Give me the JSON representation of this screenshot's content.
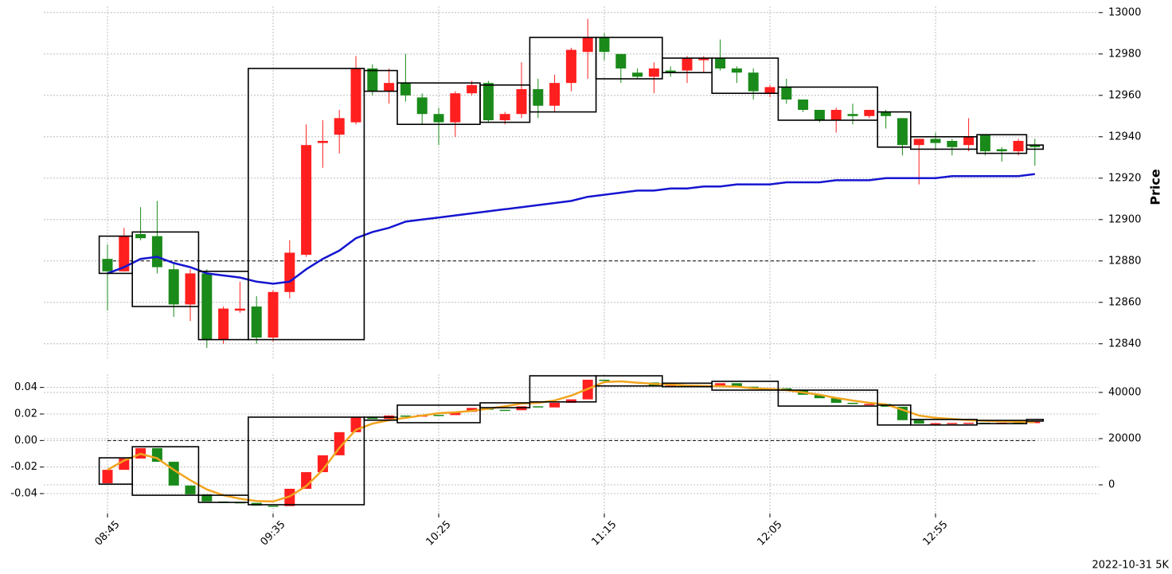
{
  "chart_data": [
    {
      "type": "candlestick",
      "ylabel": "Price",
      "ylim": [
        12833,
        13003
      ],
      "yticks": [
        12840,
        12860,
        12880,
        12900,
        12920,
        12940,
        12960,
        12980,
        13000
      ],
      "grid": true,
      "up_color": "#ff1f1f",
      "down_color": "#1a8a1a",
      "hline": 12880,
      "open": [
        12881,
        12875,
        12893,
        12892,
        12876,
        12859,
        12874,
        12842,
        12856,
        12858,
        12843,
        12865,
        12883,
        12937,
        12941,
        12947,
        12973,
        12962,
        12966,
        12959,
        12951,
        12947,
        12961,
        12966,
        12948,
        12951,
        12963,
        12955,
        12966,
        12981,
        12988,
        12980,
        12971,
        12969,
        12972,
        12972,
        12977,
        12978,
        12973,
        12971,
        12961,
        12964,
        12958,
        12953,
        12948,
        12951,
        12950,
        12952,
        12949,
        12936,
        12939,
        12938,
        12936,
        12941,
        12934,
        12933,
        12936
      ],
      "high": [
        12888,
        12896,
        12906,
        12909,
        12879,
        12876,
        12876,
        12858,
        12870,
        12863,
        12866,
        12890,
        12946,
        12948,
        12953,
        12979,
        12975,
        12973,
        12980,
        12961,
        12954,
        12962,
        12967,
        12967,
        12952,
        12976,
        12968,
        12970,
        12983,
        12997,
        12990,
        12980,
        12973,
        12976,
        12974,
        12979,
        12979,
        12987,
        12974,
        12973,
        12965,
        12968,
        12958,
        12953,
        12954,
        12956,
        12953,
        12953,
        12949,
        12939,
        12942,
        12939,
        12949,
        12941,
        12935,
        12939,
        12939
      ],
      "low": [
        12856,
        12875,
        12890,
        12874,
        12853,
        12851,
        12838,
        12840,
        12855,
        12840,
        12841,
        12862,
        12882,
        12925,
        12932,
        12946,
        12960,
        12956,
        12957,
        12946,
        12936,
        12940,
        12960,
        12947,
        12946,
        12949,
        12949,
        12952,
        12962,
        12968,
        12977,
        12966,
        12968,
        12961,
        12969,
        12966,
        12971,
        12972,
        12966,
        12958,
        12959,
        12956,
        12952,
        12947,
        12942,
        12946,
        12949,
        12944,
        12931,
        12917,
        12934,
        12931,
        12933,
        12931,
        12928,
        12931,
        12926
      ],
      "close": [
        12875,
        12892,
        12891,
        12877,
        12859,
        12874,
        12842,
        12857,
        12857,
        12843,
        12865,
        12884,
        12936,
        12938,
        12949,
        12973,
        12962,
        12966,
        12960,
        12951,
        12947,
        12961,
        12965,
        12948,
        12951,
        12963,
        12955,
        12966,
        12982,
        12988,
        12981,
        12973,
        12969,
        12973,
        12971,
        12978,
        12978,
        12973,
        12971,
        12962,
        12964,
        12958,
        12953,
        12948,
        12953,
        12950,
        12953,
        12950,
        12936,
        12939,
        12937,
        12935,
        12940,
        12933,
        12933,
        12938,
        12935
      ],
      "line": {
        "color": "#1515d0",
        "values": [
          12874,
          12877,
          12881,
          12882,
          12879,
          12877,
          12874,
          12873,
          12872,
          12870,
          12869,
          12870,
          12876,
          12881,
          12885,
          12891,
          12894,
          12896,
          12899,
          12900,
          12901,
          12902,
          12903,
          12904,
          12905,
          12906,
          12907,
          12908,
          12909,
          12911,
          12912,
          12913,
          12914,
          12914,
          12915,
          12915,
          12916,
          12916,
          12917,
          12917,
          12917,
          12918,
          12918,
          12918,
          12919,
          12919,
          12919,
          12920,
          12920,
          12920,
          12920,
          12921,
          12921,
          12921,
          12921,
          12921,
          12922
        ]
      },
      "boxes": [
        {
          "start": 0,
          "end": 1,
          "low": 12874,
          "high": 12892
        },
        {
          "start": 2,
          "end": 5,
          "low": 12858,
          "high": 12894
        },
        {
          "start": 6,
          "end": 8,
          "low": 12842,
          "high": 12875
        },
        {
          "start": 9,
          "end": 15,
          "low": 12842,
          "high": 12973
        },
        {
          "start": 16,
          "end": 17,
          "low": 12962,
          "high": 12972
        },
        {
          "start": 18,
          "end": 22,
          "low": 12946,
          "high": 12966
        },
        {
          "start": 23,
          "end": 25,
          "low": 12947,
          "high": 12965
        },
        {
          "start": 26,
          "end": 29,
          "low": 12952,
          "high": 12988
        },
        {
          "start": 30,
          "end": 33,
          "low": 12968,
          "high": 12988
        },
        {
          "start": 34,
          "end": 36,
          "low": 12971,
          "high": 12978
        },
        {
          "start": 37,
          "end": 40,
          "low": 12961,
          "high": 12978
        },
        {
          "start": 41,
          "end": 46,
          "low": 12948,
          "high": 12964
        },
        {
          "start": 47,
          "end": 48,
          "low": 12935,
          "high": 12952
        },
        {
          "start": 49,
          "end": 52,
          "low": 12934,
          "high": 12940
        },
        {
          "start": 53,
          "end": 55,
          "low": 12932,
          "high": 12941
        },
        {
          "start": 56,
          "end": 56,
          "low": 12934,
          "high": 12936
        }
      ]
    },
    {
      "type": "candlestick",
      "categories": [
        "08:45",
        null,
        null,
        null,
        null,
        null,
        null,
        null,
        null,
        null,
        "09:35",
        null,
        null,
        null,
        null,
        null,
        null,
        null,
        null,
        null,
        "10:25",
        null,
        null,
        null,
        null,
        null,
        null,
        null,
        null,
        null,
        "11:15",
        null,
        null,
        null,
        null,
        null,
        null,
        null,
        null,
        null,
        "12:05",
        null,
        null,
        null,
        null,
        null,
        null,
        null,
        null,
        null,
        "12:55",
        null,
        null,
        null,
        null,
        null,
        null
      ],
      "ylim": [
        -0.055,
        0.05
      ],
      "yticks": [
        -0.04,
        -0.02,
        {
          "value": 0,
          "label": "0.00"
        },
        0.02,
        0.04
      ],
      "y2lim": [
        -12400,
        47900
      ],
      "y2ticks": [
        0,
        20000,
        40000
      ],
      "grid": true,
      "hline": 0,
      "up_color": "#ff1f1f",
      "down_color": "#1a8a1a",
      "axis": "y2",
      "open": [
        700,
        6500,
        11400,
        15900,
        10000,
        -300,
        -4100,
        -7200,
        -7500,
        -7800,
        -9000,
        -9200,
        -1700,
        5500,
        12800,
        22800,
        29300,
        28500,
        30000,
        29500,
        30300,
        30200,
        31600,
        33300,
        32500,
        32300,
        34000,
        33500,
        35500,
        37000,
        45500,
        45000,
        44500,
        44300,
        42800,
        43000,
        42500,
        43000,
        44000,
        42500,
        41500,
        41800,
        41000,
        39000,
        37500,
        35500,
        35000,
        35000,
        33800,
        28000,
        26500,
        26700,
        26800,
        26900,
        26800,
        26900,
        26700
      ],
      "close": [
        6500,
        11400,
        15900,
        10000,
        -300,
        -4100,
        -7200,
        -7500,
        -7800,
        -9000,
        -9200,
        -1700,
        5500,
        12800,
        22800,
        29300,
        28500,
        30000,
        29500,
        30300,
        30200,
        31600,
        33300,
        32500,
        32300,
        34000,
        33500,
        35500,
        37000,
        45500,
        45000,
        44500,
        44300,
        42800,
        43000,
        42500,
        43000,
        44000,
        42500,
        41500,
        41800,
        41000,
        39000,
        37500,
        35500,
        35000,
        35000,
        33800,
        28000,
        26500,
        26700,
        26800,
        26900,
        26800,
        26900,
        26700,
        27300
      ],
      "line": {
        "color": "#f0a41e",
        "values": [
          6500,
          10500,
          13400,
          11500,
          6500,
          2000,
          -2000,
          -4500,
          -6000,
          -7000,
          -7200,
          -5000,
          -500,
          6500,
          16000,
          23800,
          26500,
          28000,
          29000,
          30000,
          31000,
          31400,
          32000,
          33000,
          34000,
          35200,
          35500,
          36500,
          38600,
          41500,
          44500,
          44800,
          44200,
          43700,
          43400,
          43000,
          42800,
          42700,
          42500,
          41800,
          41500,
          41000,
          40000,
          39000,
          37600,
          36500,
          35500,
          34800,
          32500,
          30000,
          29000,
          28500,
          28000,
          27700,
          27500,
          27300,
          27200
        ]
      },
      "boxes": [
        {
          "start": 0,
          "end": 1,
          "low": 300,
          "high": 11700
        },
        {
          "start": 2,
          "end": 5,
          "low": -4500,
          "high": 16500
        },
        {
          "start": 6,
          "end": 8,
          "low": -7600,
          "high": -4500
        },
        {
          "start": 9,
          "end": 15,
          "low": -8600,
          "high": 29300
        },
        {
          "start": 16,
          "end": 17,
          "low": 28000,
          "high": 29300
        },
        {
          "start": 18,
          "end": 22,
          "low": 26900,
          "high": 34500
        },
        {
          "start": 23,
          "end": 25,
          "low": 33400,
          "high": 35500
        },
        {
          "start": 26,
          "end": 29,
          "low": 35900,
          "high": 47200
        },
        {
          "start": 30,
          "end": 33,
          "low": 42800,
          "high": 47200
        },
        {
          "start": 34,
          "end": 36,
          "low": 42500,
          "high": 44000
        },
        {
          "start": 37,
          "end": 40,
          "low": 41000,
          "high": 44800
        },
        {
          "start": 41,
          "end": 46,
          "low": 34100,
          "high": 41000
        },
        {
          "start": 47,
          "end": 48,
          "low": 25900,
          "high": 34500
        },
        {
          "start": 49,
          "end": 52,
          "low": 25900,
          "high": 28300
        },
        {
          "start": 53,
          "end": 55,
          "low": 26500,
          "high": 27900
        },
        {
          "start": 56,
          "end": 56,
          "low": 27600,
          "high": 28300
        }
      ],
      "footnote": "2022-10-31 5K"
    }
  ]
}
